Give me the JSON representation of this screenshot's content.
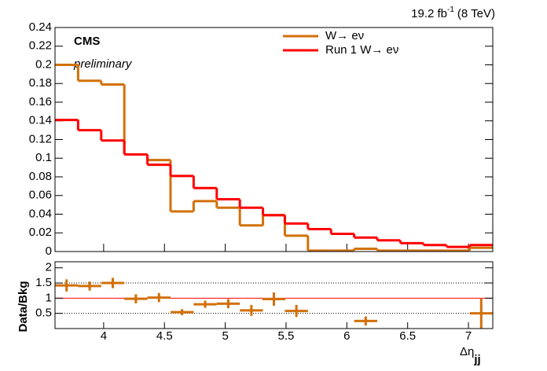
{
  "chart_data": [
    {
      "type": "histogram",
      "title": "19.2 fb",
      "title_sup": "-1",
      "title_suffix": "(8 TeV)",
      "experiment": "CMS",
      "status": "preliminary",
      "bins": [
        3.6,
        3.79,
        3.98,
        4.17,
        4.36,
        4.55,
        4.74,
        4.93,
        5.12,
        5.31,
        5.49,
        5.68,
        5.87,
        6.06,
        6.25,
        6.44,
        6.63,
        6.82,
        7.01,
        7.2
      ],
      "series": [
        {
          "name": "W→ eν",
          "color": "#d2700a",
          "values": [
            0.2,
            0.183,
            0.179,
            0.104,
            0.098,
            0.043,
            0.054,
            0.047,
            0.028,
            0.039,
            0.017,
            0.001,
            0.001,
            0.003,
            0.001,
            0.001,
            0.001,
            0.001,
            0.004
          ]
        },
        {
          "name": "Run 1 W→ eν",
          "color": "#ff0000",
          "values": [
            0.141,
            0.13,
            0.119,
            0.104,
            0.093,
            0.081,
            0.068,
            0.056,
            0.047,
            0.039,
            0.03,
            0.024,
            0.019,
            0.015,
            0.012,
            0.009,
            0.007,
            0.005,
            0.007
          ]
        }
      ],
      "xlim": [
        3.6,
        7.2
      ],
      "ylim": [
        0,
        0.24
      ],
      "yticks": [
        0,
        0.02,
        0.04,
        0.06,
        0.08,
        0.1,
        0.12,
        0.14,
        0.16,
        0.18,
        0.2,
        0.22,
        0.24
      ],
      "legend": "top-right"
    },
    {
      "type": "errorbar",
      "ylabel": "Data/Bkg",
      "xlabel": "Δη",
      "xlabel_sub": "jj",
      "color": "#d2700a",
      "x": [
        3.695,
        3.885,
        4.075,
        4.265,
        4.455,
        4.645,
        4.835,
        5.025,
        5.215,
        5.4,
        5.585,
        6.155,
        7.105
      ],
      "values": [
        1.42,
        1.4,
        1.5,
        0.98,
        1.02,
        0.54,
        0.8,
        0.82,
        0.6,
        0.97,
        0.58,
        0.25,
        0.5
      ],
      "errors": [
        0.2,
        0.15,
        0.17,
        0.15,
        0.15,
        0.1,
        0.12,
        0.15,
        0.18,
        0.22,
        0.2,
        0.15,
        0.5
      ],
      "xerr": 0.095,
      "xlim": [
        3.6,
        7.2
      ],
      "ylim": [
        0,
        2.2
      ],
      "xticks": [
        4,
        4.5,
        5,
        5.5,
        6,
        6.5,
        7
      ],
      "yticks": [
        0.5,
        1,
        1.5,
        2
      ],
      "reference_line": 1,
      "reference_color": "#ff0000",
      "dotted_lines": [
        0.5,
        1.5
      ]
    }
  ]
}
